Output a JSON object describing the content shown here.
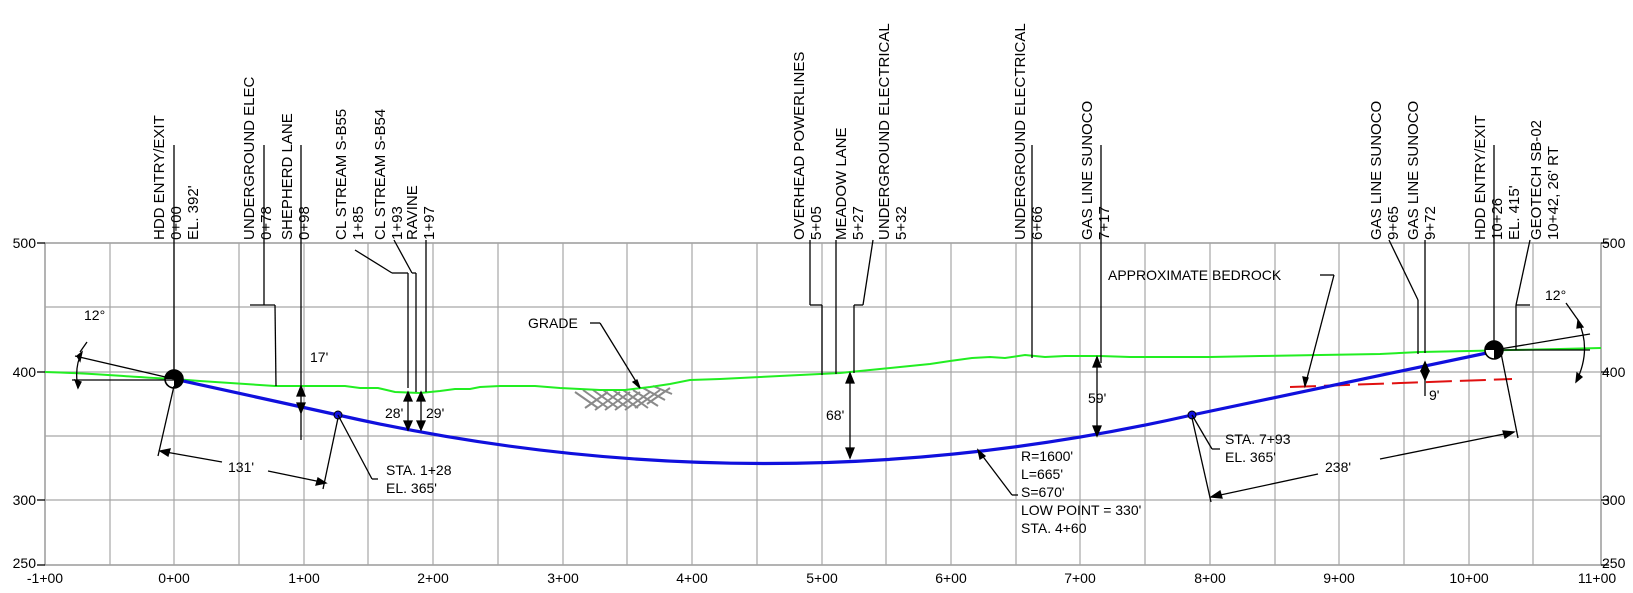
{
  "axes": {
    "y_left": [
      "500",
      "400",
      "300",
      "250"
    ],
    "y_right": [
      "500",
      "400",
      "300",
      "250"
    ],
    "x": [
      "-1+00",
      "0+00",
      "1+00",
      "2+00",
      "3+00",
      "4+00",
      "5+00",
      "6+00",
      "7+00",
      "8+00",
      "9+00",
      "10+00",
      "11+00"
    ]
  },
  "features": [
    {
      "name": "HDD ENTRY/EXIT",
      "lines": [
        "0+00",
        "EL. 392'"
      ]
    },
    {
      "name": "UNDERGROUND ELEC",
      "lines": [
        "0+78"
      ]
    },
    {
      "name": "SHEPHERD LANE",
      "lines": [
        "0+98"
      ]
    },
    {
      "name": "CL STREAM S-B55",
      "lines": [
        "1+85"
      ]
    },
    {
      "name": "CL STREAM S-B54",
      "lines": [
        "1+93"
      ]
    },
    {
      "name": "RAVINE",
      "lines": [
        "1+97"
      ]
    },
    {
      "name": "OVERHEAD POWERLINES",
      "lines": [
        "5+05"
      ]
    },
    {
      "name": "MEADOW LANE",
      "lines": [
        "5+27"
      ]
    },
    {
      "name": "UNDERGROUND ELECTRICAL",
      "lines": [
        "5+32"
      ]
    },
    {
      "name": "UNDERGROUND ELECTRICAL",
      "lines": [
        "6+66"
      ]
    },
    {
      "name": "GAS LINE SUNOCO",
      "lines": [
        "7+17"
      ]
    },
    {
      "name": "GAS LINE SUNOCO",
      "lines": [
        "9+65"
      ]
    },
    {
      "name": "GAS LINE SUNOCO",
      "lines": [
        "9+72"
      ]
    },
    {
      "name": "HDD ENTRY/EXIT",
      "lines": [
        "10+26",
        "EL. 415'"
      ]
    },
    {
      "name": "GEOTECH SB-02",
      "lines": [
        "10+42, 26' RT"
      ]
    }
  ],
  "labels": {
    "approx_bedrock": "APPROXIMATE BEDROCK",
    "grade": "GRADE",
    "angle_left": "12°",
    "angle_right": "12°",
    "depth_17": "17'",
    "depth_28": "28'",
    "depth_29": "29'",
    "depth_68": "68'",
    "depth_59": "59'",
    "depth_9": "9'",
    "len_131": "131'",
    "len_238": "238'",
    "pc_sta": "STA. 1+28",
    "pc_el": "EL. 365'",
    "pt_sta": "STA. 7+93",
    "pt_el": "EL. 365'",
    "curve": [
      "R=1600'",
      "L=665'",
      "S=670'",
      "LOW POINT = 330'",
      "STA. 4+60"
    ]
  },
  "colors": {
    "grade": "#22ee22",
    "bore": "#1010dd",
    "bedrock": "#e01010",
    "grid": "#a6a6a6"
  }
}
